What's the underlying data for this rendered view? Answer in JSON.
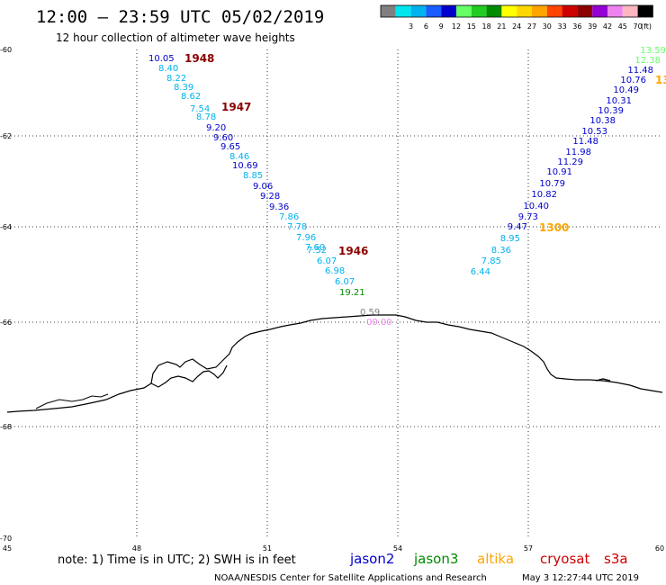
{
  "header": {
    "title": "12:00 — 23:59 UTC 05/02/2019",
    "subtitle": "12 hour collection of altimeter wave heights"
  },
  "colorbar": {
    "unit": "(ft)",
    "swatches": [
      {
        "color": "#808080",
        "label": ""
      },
      {
        "color": "#00e5ee",
        "label": "3"
      },
      {
        "color": "#00b2ee",
        "label": "6"
      },
      {
        "color": "#1a5cff",
        "label": "9"
      },
      {
        "color": "#0000cd",
        "label": "12"
      },
      {
        "color": "#66ff66",
        "label": "15"
      },
      {
        "color": "#22cc22",
        "label": "18"
      },
      {
        "color": "#008b00",
        "label": "21"
      },
      {
        "color": "#ffff00",
        "label": "24"
      },
      {
        "color": "#ffd700",
        "label": "27"
      },
      {
        "color": "#ffa500",
        "label": "30"
      },
      {
        "color": "#ff4500",
        "label": "33"
      },
      {
        "color": "#cd0000",
        "label": "36"
      },
      {
        "color": "#8b0000",
        "label": "39"
      },
      {
        "color": "#9400d3",
        "label": "42"
      },
      {
        "color": "#ee82ee",
        "label": "45"
      },
      {
        "color": "#ffb6c1",
        "label": "70"
      },
      {
        "color": "#000000",
        "label": ""
      }
    ]
  },
  "map": {
    "lon_ticks": [
      "45",
      "48",
      "51",
      "54",
      "57",
      "60"
    ],
    "lat_ticks": [
      "-60",
      "-62",
      "-64",
      "-66",
      "-68",
      "-70"
    ]
  },
  "tracks": {
    "left": [
      {
        "v": "10.05",
        "c": "#0000cd"
      },
      {
        "v": "8.40",
        "c": "#00b2ee"
      },
      {
        "v": "8.22",
        "c": "#00b2ee"
      },
      {
        "v": "8.39",
        "c": "#00b2ee"
      },
      {
        "v": "8.62",
        "c": "#00b2ee"
      },
      {
        "v": "7.54",
        "c": "#00b2ee"
      },
      {
        "v": "8.78",
        "c": "#00b2ee"
      },
      {
        "v": "9.20",
        "c": "#0000cd"
      },
      {
        "v": "9.60",
        "c": "#0000cd"
      },
      {
        "v": "9.65",
        "c": "#0000cd"
      },
      {
        "v": "8.46",
        "c": "#00b2ee"
      },
      {
        "v": "10.69",
        "c": "#0000cd"
      },
      {
        "v": "8.85",
        "c": "#00b2ee"
      },
      {
        "v": "9.06",
        "c": "#0000cd"
      },
      {
        "v": "9.28",
        "c": "#0000cd"
      },
      {
        "v": "9.36",
        "c": "#0000cd"
      },
      {
        "v": "7.86",
        "c": "#00b2ee"
      },
      {
        "v": "7.78",
        "c": "#00b2ee"
      },
      {
        "v": "7.96",
        "c": "#00b2ee"
      },
      {
        "v": "7.60",
        "c": "#00b2ee"
      },
      {
        "v": "7.52",
        "c": "#00b2ee"
      },
      {
        "v": "6.07",
        "c": "#00b2ee"
      },
      {
        "v": "6.98",
        "c": "#00b2ee"
      },
      {
        "v": "6.07",
        "c": "#00b2ee"
      },
      {
        "v": "19.21",
        "c": "#008b00"
      }
    ],
    "right": [
      {
        "v": "13.59",
        "c": "#66ff66"
      },
      {
        "v": "12.38",
        "c": "#66ff66"
      },
      {
        "v": "11.48",
        "c": "#0000cd"
      },
      {
        "v": "10.76",
        "c": "#0000cd"
      },
      {
        "v": "10.49",
        "c": "#0000cd"
      },
      {
        "v": "10.31",
        "c": "#0000cd"
      },
      {
        "v": "10.39",
        "c": "#0000cd"
      },
      {
        "v": "10.38",
        "c": "#0000cd"
      },
      {
        "v": "10.53",
        "c": "#0000cd"
      },
      {
        "v": "11.48",
        "c": "#0000cd"
      },
      {
        "v": "11.98",
        "c": "#0000cd"
      },
      {
        "v": "11.29",
        "c": "#0000cd"
      },
      {
        "v": "10.91",
        "c": "#0000cd"
      },
      {
        "v": "10.79",
        "c": "#0000cd"
      },
      {
        "v": "10.82",
        "c": "#0000cd"
      },
      {
        "v": "10.40",
        "c": "#0000cd"
      },
      {
        "v": "9.73",
        "c": "#0000cd"
      },
      {
        "v": "9.47",
        "c": "#0000cd"
      },
      {
        "v": "8.95",
        "c": "#00b2ee"
      },
      {
        "v": "8.36",
        "c": "#00b2ee"
      },
      {
        "v": "7.85",
        "c": "#00b2ee"
      },
      {
        "v": "6.44",
        "c": "#00b2ee"
      }
    ],
    "coast": [
      {
        "v": "0.59",
        "c": "#808080"
      },
      {
        "v": "00.00",
        "c": "#ee82ee"
      }
    ]
  },
  "time_labels": [
    {
      "text": "1948",
      "color": "#8b0000"
    },
    {
      "text": "1947",
      "color": "#8b0000"
    },
    {
      "text": "1946",
      "color": "#8b0000"
    },
    {
      "text": "1300",
      "color": "#ffa500"
    },
    {
      "text": "13",
      "color": "#ffa500"
    }
  ],
  "footer": {
    "note": "note: 1) Time is in UTC; 2) SWH is in feet",
    "satellites": [
      {
        "name": "jason2",
        "color": "#0000cd"
      },
      {
        "name": "jason3",
        "color": "#008b00"
      },
      {
        "name": "altika",
        "color": "#ffa500"
      },
      {
        "name": "cryosat",
        "color": "#cd0000"
      },
      {
        "name": "s3a",
        "color": "#cd0000"
      }
    ],
    "credit": "NOAA/NESDIS Center for Satellite Applications and Research",
    "timestamp": "May  3 12:27:44 UTC 2019"
  }
}
